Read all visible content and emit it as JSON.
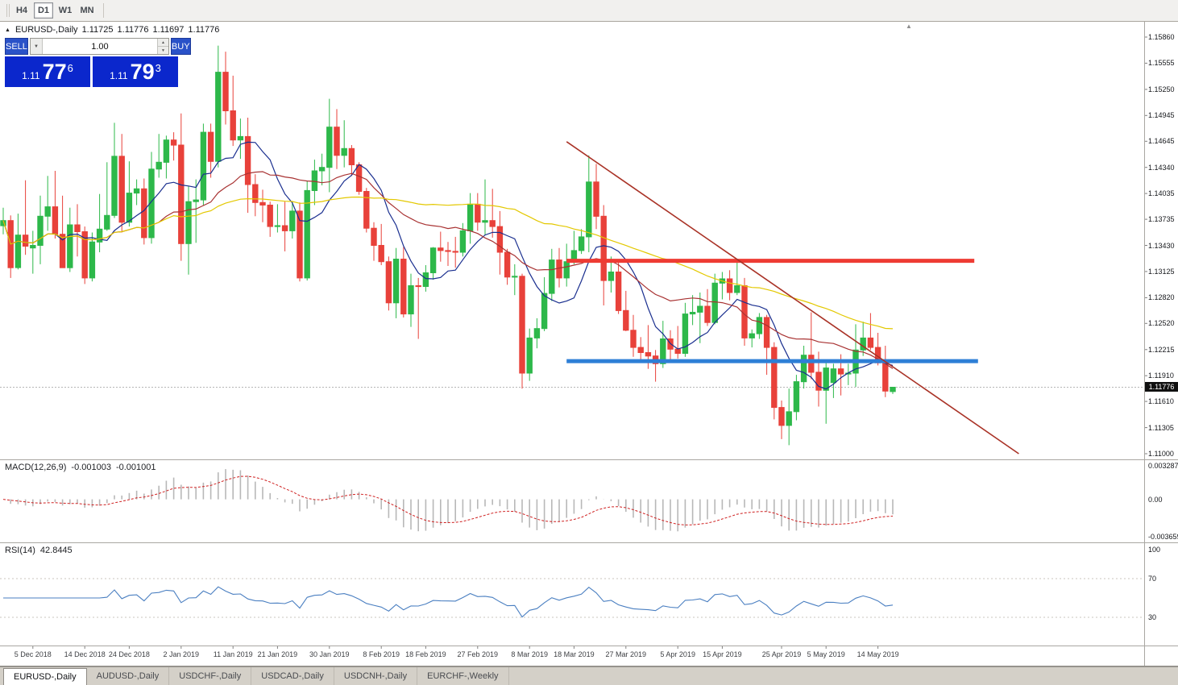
{
  "toolbar": {
    "timeframes": [
      {
        "label": "H4",
        "active": false
      },
      {
        "label": "D1",
        "active": true
      },
      {
        "label": "W1",
        "active": false
      },
      {
        "label": "MN",
        "active": false
      }
    ]
  },
  "icons": {
    "one_click_toggle": "▲",
    "chart_shift": "▲",
    "volume_dropdown": "▼",
    "spinner_up": "▲",
    "spinner_down": "▼"
  },
  "chart": {
    "header": {
      "symbol": "EURUSD-,Daily",
      "open": "1.11725",
      "high": "1.11776",
      "low": "1.11697",
      "close": "1.11776"
    },
    "trade_panel": {
      "sell_label": "SELL",
      "buy_label": "BUY",
      "volume": "1.00",
      "sell_price": {
        "prefix": "1.11",
        "big": "77",
        "pip": "6"
      },
      "buy_price": {
        "prefix": "1.11",
        "big": "79",
        "pip": "3"
      }
    },
    "current_price": "1.11776"
  },
  "macd": {
    "name": "MACD(12,26,9)",
    "value_main": "-0.001003",
    "value_signal": "-0.001001",
    "axis": [
      "0.003287",
      "0.00",
      "-0.003659"
    ]
  },
  "rsi": {
    "name": "RSI(14)",
    "value": "42.8445",
    "axis": [
      "100",
      "70",
      "30"
    ]
  },
  "tabs": [
    {
      "label": "EURUSD-,Daily",
      "active": true
    },
    {
      "label": "AUDUSD-,Daily",
      "active": false
    },
    {
      "label": "USDCHF-,Daily",
      "active": false
    },
    {
      "label": "USDCAD-,Daily",
      "active": false
    },
    {
      "label": "USDCNH-,Daily",
      "active": false
    },
    {
      "label": "EURCHF-,Weekly",
      "active": false
    }
  ],
  "chart_data": {
    "type": "candlestick",
    "symbol": "EURUSD-",
    "timeframe": "Daily",
    "price_axis_ticks": [
      "1.15860",
      "1.15555",
      "1.15250",
      "1.14945",
      "1.14645",
      "1.14340",
      "1.14035",
      "1.13735",
      "1.13430",
      "1.13125",
      "1.12820",
      "1.12520",
      "1.12215",
      "1.11910",
      "1.11610",
      "1.11305",
      "1.11000"
    ],
    "date_ticks": [
      {
        "label": "5 Dec 2018",
        "index": 4
      },
      {
        "label": "14 Dec 2018",
        "index": 11
      },
      {
        "label": "24 Dec 2018",
        "index": 17
      },
      {
        "label": "2 Jan 2019",
        "index": 24
      },
      {
        "label": "11 Jan 2019",
        "index": 31
      },
      {
        "label": "21 Jan 2019",
        "index": 37
      },
      {
        "label": "30 Jan 2019",
        "index": 44
      },
      {
        "label": "8 Feb 2019",
        "index": 51
      },
      {
        "label": "18 Feb 2019",
        "index": 57
      },
      {
        "label": "27 Feb 2019",
        "index": 64
      },
      {
        "label": "8 Mar 2019",
        "index": 71
      },
      {
        "label": "18 Mar 2019",
        "index": 77
      },
      {
        "label": "27 Mar 2019",
        "index": 84
      },
      {
        "label": "5 Apr 2019",
        "index": 91
      },
      {
        "label": "15 Apr 2019",
        "index": 97
      },
      {
        "label": "25 Apr 2019",
        "index": 105
      },
      {
        "label": "5 May 2019",
        "index": 111
      },
      {
        "label": "14 May 2019",
        "index": 118
      }
    ],
    "ohlc": [
      [
        1.1366,
        1.1387,
        1.1356,
        1.1372
      ],
      [
        1.1372,
        1.1378,
        1.1305,
        1.1317
      ],
      [
        1.1317,
        1.138,
        1.1315,
        1.1355
      ],
      [
        1.1355,
        1.1419,
        1.1332,
        1.1342
      ],
      [
        1.134,
        1.136,
        1.131,
        1.1343
      ],
      [
        1.1343,
        1.1401,
        1.1321,
        1.1377
      ],
      [
        1.1377,
        1.1424,
        1.136,
        1.1388
      ],
      [
        1.1388,
        1.143,
        1.1351,
        1.1356
      ],
      [
        1.1356,
        1.1401,
        1.1317,
        1.1317
      ],
      [
        1.1317,
        1.1387,
        1.1312,
        1.1367
      ],
      [
        1.1367,
        1.1391,
        1.133,
        1.1359
      ],
      [
        1.1359,
        1.1365,
        1.1298,
        1.1305
      ],
      [
        1.1305,
        1.1358,
        1.1301,
        1.1347
      ],
      [
        1.1347,
        1.1403,
        1.1335,
        1.1362
      ],
      [
        1.1362,
        1.144,
        1.136,
        1.1378
      ],
      [
        1.1378,
        1.1486,
        1.1375,
        1.1447
      ],
      [
        1.1447,
        1.1473,
        1.1358,
        1.137
      ],
      [
        1.137,
        1.1441,
        1.1365,
        1.1404
      ],
      [
        1.1404,
        1.142,
        1.139,
        1.1409
      ],
      [
        1.1409,
        1.1421,
        1.1344,
        1.1352
      ],
      [
        1.1352,
        1.1452,
        1.1345,
        1.1432
      ],
      [
        1.1432,
        1.1473,
        1.1422,
        1.144
      ],
      [
        1.144,
        1.1471,
        1.1421,
        1.1466
      ],
      [
        1.1466,
        1.1475,
        1.1442,
        1.146
      ],
      [
        1.146,
        1.1497,
        1.1325,
        1.1345
      ],
      [
        1.1345,
        1.1412,
        1.1309,
        1.1394
      ],
      [
        1.1394,
        1.142,
        1.1346,
        1.1396
      ],
      [
        1.1396,
        1.1485,
        1.139,
        1.1475
      ],
      [
        1.1475,
        1.1485,
        1.1422,
        1.1441
      ],
      [
        1.1441,
        1.1576,
        1.1434,
        1.1545
      ],
      [
        1.1545,
        1.1569,
        1.1484,
        1.15
      ],
      [
        1.15,
        1.1541,
        1.1459,
        1.1466
      ],
      [
        1.1466,
        1.1491,
        1.1444,
        1.147
      ],
      [
        1.147,
        1.1492,
        1.1381,
        1.1414
      ],
      [
        1.1414,
        1.1426,
        1.1377,
        1.1393
      ],
      [
        1.1393,
        1.1408,
        1.137,
        1.139
      ],
      [
        1.139,
        1.1394,
        1.1353,
        1.1365
      ],
      [
        1.1365,
        1.1391,
        1.1358,
        1.1366
      ],
      [
        1.1366,
        1.1394,
        1.1336,
        1.136
      ],
      [
        1.136,
        1.1394,
        1.1351,
        1.1383
      ],
      [
        1.1383,
        1.1393,
        1.1301,
        1.1305
      ],
      [
        1.1305,
        1.1418,
        1.1302,
        1.1407
      ],
      [
        1.1407,
        1.1443,
        1.139,
        1.143
      ],
      [
        1.143,
        1.145,
        1.1413,
        1.1434
      ],
      [
        1.1434,
        1.1514,
        1.1405,
        1.1481
      ],
      [
        1.1481,
        1.1502,
        1.1432,
        1.1448
      ],
      [
        1.1448,
        1.1489,
        1.1434,
        1.1456
      ],
      [
        1.1456,
        1.146,
        1.1424,
        1.1437
      ],
      [
        1.1437,
        1.144,
        1.1402,
        1.1406
      ],
      [
        1.1406,
        1.141,
        1.1358,
        1.1363
      ],
      [
        1.1363,
        1.137,
        1.1325,
        1.1343
      ],
      [
        1.1343,
        1.1368,
        1.132,
        1.1324
      ],
      [
        1.1324,
        1.133,
        1.1267,
        1.1276
      ],
      [
        1.1276,
        1.134,
        1.1258,
        1.1327
      ],
      [
        1.1327,
        1.1341,
        1.1259,
        1.1263
      ],
      [
        1.1263,
        1.131,
        1.1248,
        1.1296
      ],
      [
        1.1296,
        1.1305,
        1.1234,
        1.1295
      ],
      [
        1.1295,
        1.132,
        1.1289,
        1.1311
      ],
      [
        1.1311,
        1.1341,
        1.1303,
        1.134
      ],
      [
        1.134,
        1.1359,
        1.1324,
        1.1337
      ],
      [
        1.1337,
        1.1347,
        1.1319,
        1.1336
      ],
      [
        1.1336,
        1.1353,
        1.1317,
        1.1335
      ],
      [
        1.1335,
        1.1369,
        1.133,
        1.136
      ],
      [
        1.136,
        1.1404,
        1.1345,
        1.1391
      ],
      [
        1.1391,
        1.1404,
        1.136,
        1.137
      ],
      [
        1.137,
        1.142,
        1.1355,
        1.1372
      ],
      [
        1.1372,
        1.1409,
        1.1352,
        1.1365
      ],
      [
        1.1365,
        1.1383,
        1.1309,
        1.1335
      ],
      [
        1.1335,
        1.1339,
        1.1297,
        1.1306
      ],
      [
        1.1306,
        1.1321,
        1.1285,
        1.1307
      ],
      [
        1.1307,
        1.131,
        1.1176,
        1.1194
      ],
      [
        1.1194,
        1.1246,
        1.1185,
        1.1235
      ],
      [
        1.1235,
        1.1258,
        1.1223,
        1.1246
      ],
      [
        1.1246,
        1.1306,
        1.1243,
        1.1287
      ],
      [
        1.1287,
        1.1339,
        1.1278,
        1.1326
      ],
      [
        1.1326,
        1.134,
        1.1294,
        1.1305
      ],
      [
        1.1305,
        1.1345,
        1.1295,
        1.1324
      ],
      [
        1.1324,
        1.136,
        1.1321,
        1.1337
      ],
      [
        1.1337,
        1.1362,
        1.1333,
        1.1353
      ],
      [
        1.1353,
        1.1448,
        1.1335,
        1.1417
      ],
      [
        1.1417,
        1.1438,
        1.1362,
        1.1377
      ],
      [
        1.1377,
        1.139,
        1.1273,
        1.1302
      ],
      [
        1.1302,
        1.133,
        1.1288,
        1.1312
      ],
      [
        1.1312,
        1.1327,
        1.1263,
        1.1267
      ],
      [
        1.1267,
        1.129,
        1.1243,
        1.1244
      ],
      [
        1.1244,
        1.1262,
        1.1213,
        1.1224
      ],
      [
        1.1224,
        1.1236,
        1.121,
        1.1218
      ],
      [
        1.1218,
        1.125,
        1.1199,
        1.1214
      ],
      [
        1.1214,
        1.1221,
        1.1184,
        1.1205
      ],
      [
        1.1205,
        1.1255,
        1.12,
        1.1234
      ],
      [
        1.1234,
        1.1244,
        1.1206,
        1.1222
      ],
      [
        1.1222,
        1.1249,
        1.1211,
        1.1217
      ],
      [
        1.1217,
        1.1276,
        1.1213,
        1.1263
      ],
      [
        1.1263,
        1.1285,
        1.125,
        1.1265
      ],
      [
        1.1265,
        1.1288,
        1.1229,
        1.1272
      ],
      [
        1.1272,
        1.1292,
        1.1249,
        1.1253
      ],
      [
        1.1253,
        1.131,
        1.1251,
        1.1299
      ],
      [
        1.1299,
        1.1312,
        1.128,
        1.1304
      ],
      [
        1.1304,
        1.1314,
        1.1279,
        1.1288
      ],
      [
        1.1288,
        1.1324,
        1.1285,
        1.1296
      ],
      [
        1.1296,
        1.1305,
        1.1226,
        1.1235
      ],
      [
        1.1235,
        1.1245,
        1.1224,
        1.124
      ],
      [
        1.124,
        1.1264,
        1.1234,
        1.1259
      ],
      [
        1.1259,
        1.1262,
        1.1192,
        1.1224
      ],
      [
        1.1224,
        1.123,
        1.114,
        1.1154
      ],
      [
        1.1154,
        1.1162,
        1.1117,
        1.1133
      ],
      [
        1.1133,
        1.1176,
        1.111,
        1.1149
      ],
      [
        1.1149,
        1.1192,
        1.1139,
        1.1184
      ],
      [
        1.1184,
        1.1226,
        1.1176,
        1.1215
      ],
      [
        1.1215,
        1.1265,
        1.1187,
        1.1195
      ],
      [
        1.1195,
        1.1219,
        1.1155,
        1.1174
      ],
      [
        1.1174,
        1.1206,
        1.1135,
        1.12
      ],
      [
        1.1183,
        1.1205,
        1.1165,
        1.1199
      ],
      [
        1.1199,
        1.1216,
        1.1168,
        1.1193
      ],
      [
        1.1193,
        1.1205,
        1.118,
        1.1194
      ],
      [
        1.1194,
        1.1251,
        1.1178,
        1.1221
      ],
      [
        1.1221,
        1.1254,
        1.1214,
        1.1235
      ],
      [
        1.1235,
        1.1264,
        1.1221,
        1.1224
      ],
      [
        1.1224,
        1.1241,
        1.1203,
        1.1206
      ],
      [
        1.1206,
        1.1226,
        1.1166,
        1.1173
      ],
      [
        1.11725,
        1.11776,
        1.11697,
        1.11776
      ]
    ],
    "moving_averages": [
      {
        "period": 8,
        "color": "#1a2f8f"
      },
      {
        "period": 21,
        "color": "#a83232"
      },
      {
        "period": 50,
        "color": "#e3c800"
      }
    ],
    "overlays": [
      {
        "kind": "hline",
        "price": 1.1325,
        "from_index": 76,
        "to_index": 131,
        "color": "#ee3b33",
        "width": 5
      },
      {
        "kind": "hline",
        "price": 1.1208,
        "from_index": 76,
        "to_index": 131.5,
        "color": "#2e7fd6",
        "width": 5
      },
      {
        "kind": "trendline",
        "from": {
          "index": 76,
          "price": 1.1464
        },
        "to": {
          "index": 137,
          "price": 1.11
        },
        "color": "#a93226",
        "width": 1.6
      }
    ],
    "macd_settings": {
      "fast": 12,
      "slow": 26,
      "signal": 9
    },
    "rsi_settings": {
      "period": 14,
      "levels": [
        70,
        30
      ]
    },
    "colors": {
      "up": "#2db84a",
      "down": "#e8413a",
      "macd_hist": "#b8b8b8",
      "macd_signal": "#cf2020",
      "rsi": "#4a7fc1",
      "price_line": "#b5b5b5"
    }
  }
}
